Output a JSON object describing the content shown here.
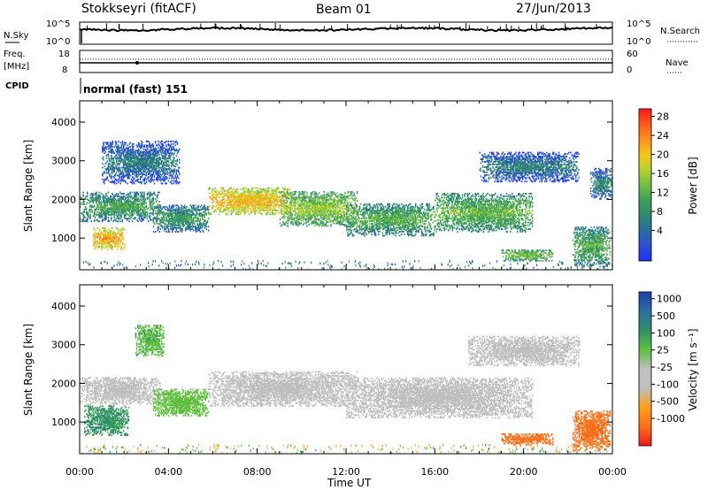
{
  "header": {
    "station": "Stokkseyri (fitACF)",
    "beam": "Beam 01",
    "date": "27/Jun/2013"
  },
  "top_panels": {
    "nsky_label": "N.Sky",
    "nsky_ticks": [
      "10^5",
      "10^0"
    ],
    "nsearch_label": "N.Search",
    "nsearch_ticks": [
      "10^5",
      "10^0"
    ],
    "freq_label_1": "Freq.",
    "freq_label_2": "[MHz]",
    "freq_ticks": [
      "18",
      "8"
    ],
    "nave_label": "Nave",
    "nave_ticks": [
      "60",
      "0"
    ],
    "cpid_label": "CPID",
    "cpid_value": "normal (fast) 151"
  },
  "axes": {
    "ylabel": "Slant Range [km]",
    "yticks": [
      "4000",
      "3000",
      "2000",
      "1000"
    ],
    "xticks": [
      "00:00",
      "04:00",
      "08:00",
      "12:00",
      "16:00",
      "20:00",
      "00:00"
    ],
    "xlabel": "Time UT"
  },
  "colorbars": {
    "power": {
      "label": "Power [dB]",
      "ticks": [
        "28",
        "24",
        "20",
        "16",
        "12",
        "8",
        "4"
      ],
      "colors": [
        "#ff1a1a",
        "#ff5a1a",
        "#ff9020",
        "#f5c21a",
        "#b8d232",
        "#6fbf44",
        "#3f9e5a",
        "#2f8a6e",
        "#2a6aa0",
        "#2c4fd0",
        "#1e2fff"
      ]
    },
    "velocity": {
      "label": "Velocity [m s⁻¹]",
      "ticks": [
        "1000",
        "500",
        "100",
        "25",
        "-25",
        "-100",
        "-500",
        "-1000"
      ],
      "colors": [
        "#1f3fa8",
        "#2d6fa0",
        "#2f8f6a",
        "#5fbf3f",
        "#bfbfbf",
        "#bfbfbf",
        "#ff9f1a",
        "#ff6f1a",
        "#e81a1a"
      ]
    }
  },
  "chart_data": [
    {
      "type": "heatmap",
      "name": "power",
      "x_range_hours": [
        0,
        24
      ],
      "ylim": [
        180,
        4550
      ],
      "bands": [
        {
          "t0": 0.0,
          "t1": 3.6,
          "r0": 1420,
          "r1": 2180,
          "power": 11
        },
        {
          "t0": 0.6,
          "t1": 2.0,
          "r0": 700,
          "r1": 1250,
          "power": 21
        },
        {
          "t0": 1.0,
          "t1": 4.5,
          "r0": 2400,
          "r1": 3500,
          "power": 7
        },
        {
          "t0": 3.3,
          "t1": 5.8,
          "r0": 1150,
          "r1": 1850,
          "power": 10
        },
        {
          "t0": 5.8,
          "t1": 9.5,
          "r0": 1600,
          "r1": 2300,
          "power": 20
        },
        {
          "t0": 9.0,
          "t1": 12.5,
          "r0": 1300,
          "r1": 2200,
          "power": 15
        },
        {
          "t0": 12.0,
          "t1": 16.0,
          "r0": 1050,
          "r1": 1900,
          "power": 12
        },
        {
          "t0": 16.0,
          "t1": 20.4,
          "r0": 1150,
          "r1": 2150,
          "power": 13
        },
        {
          "t0": 18.0,
          "t1": 22.5,
          "r0": 2450,
          "r1": 3200,
          "power": 7
        },
        {
          "t0": 19.0,
          "t1": 21.3,
          "r0": 400,
          "r1": 700,
          "power": 14
        },
        {
          "t0": 22.2,
          "t1": 23.9,
          "r0": 250,
          "r1": 1300,
          "power": 12
        },
        {
          "t0": 23.0,
          "t1": 24.0,
          "r0": 2000,
          "r1": 2800,
          "power": 8
        }
      ]
    },
    {
      "type": "heatmap",
      "name": "velocity",
      "x_range_hours": [
        0,
        24
      ],
      "ylim": [
        180,
        4550
      ],
      "bands": [
        {
          "t0": 0.0,
          "t1": 3.6,
          "r0": 1450,
          "r1": 2150,
          "velocity": 0
        },
        {
          "t0": 0.2,
          "t1": 2.2,
          "r0": 650,
          "r1": 1400,
          "velocity": 150
        },
        {
          "t0": 2.5,
          "t1": 3.8,
          "r0": 2700,
          "r1": 3500,
          "velocity": 90
        },
        {
          "t0": 3.3,
          "t1": 5.8,
          "r0": 1150,
          "r1": 1850,
          "velocity": 60
        },
        {
          "t0": 5.8,
          "t1": 12.5,
          "r0": 1400,
          "r1": 2300,
          "velocity": 0
        },
        {
          "t0": 12.0,
          "t1": 20.4,
          "r0": 1100,
          "r1": 2150,
          "velocity": 0
        },
        {
          "t0": 17.5,
          "t1": 22.5,
          "r0": 2450,
          "r1": 3200,
          "velocity": 0
        },
        {
          "t0": 19.0,
          "t1": 21.3,
          "r0": 400,
          "r1": 700,
          "velocity": -250
        },
        {
          "t0": 22.2,
          "t1": 23.9,
          "r0": 250,
          "r1": 1300,
          "velocity": -400
        }
      ]
    }
  ]
}
